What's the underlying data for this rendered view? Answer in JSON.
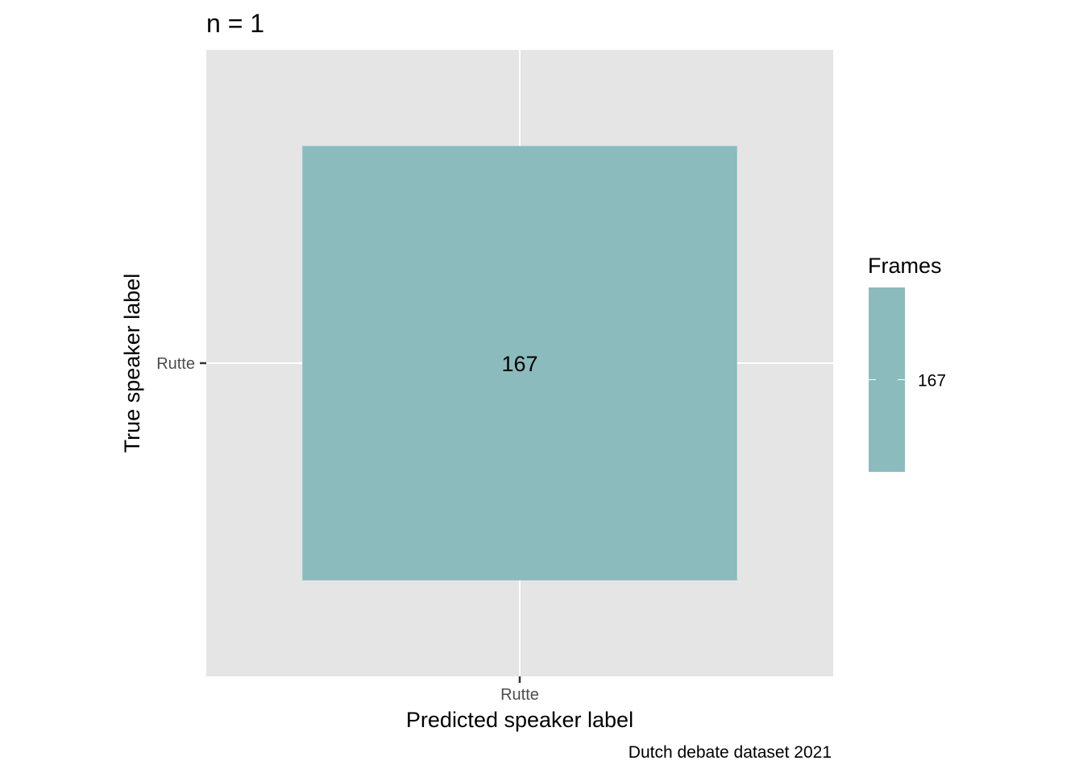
{
  "chart_data": {
    "type": "heatmap",
    "title": "n = 1",
    "xlabel": "Predicted speaker label",
    "ylabel": "True speaker label",
    "x_categories": [
      "Rutte"
    ],
    "y_categories": [
      "Rutte"
    ],
    "cells": [
      {
        "x": "Rutte",
        "y": "Rutte",
        "value": 167,
        "label": "167"
      }
    ],
    "legend": {
      "title": "Frames",
      "placement": "right",
      "breaks": [
        167
      ],
      "labels": [
        "167"
      ]
    },
    "caption": "Dutch debate dataset 2021",
    "grid": true,
    "colors": {
      "panel": "#e5e5e5",
      "grid": "#ffffff",
      "fill": "#8bbbbc"
    }
  }
}
